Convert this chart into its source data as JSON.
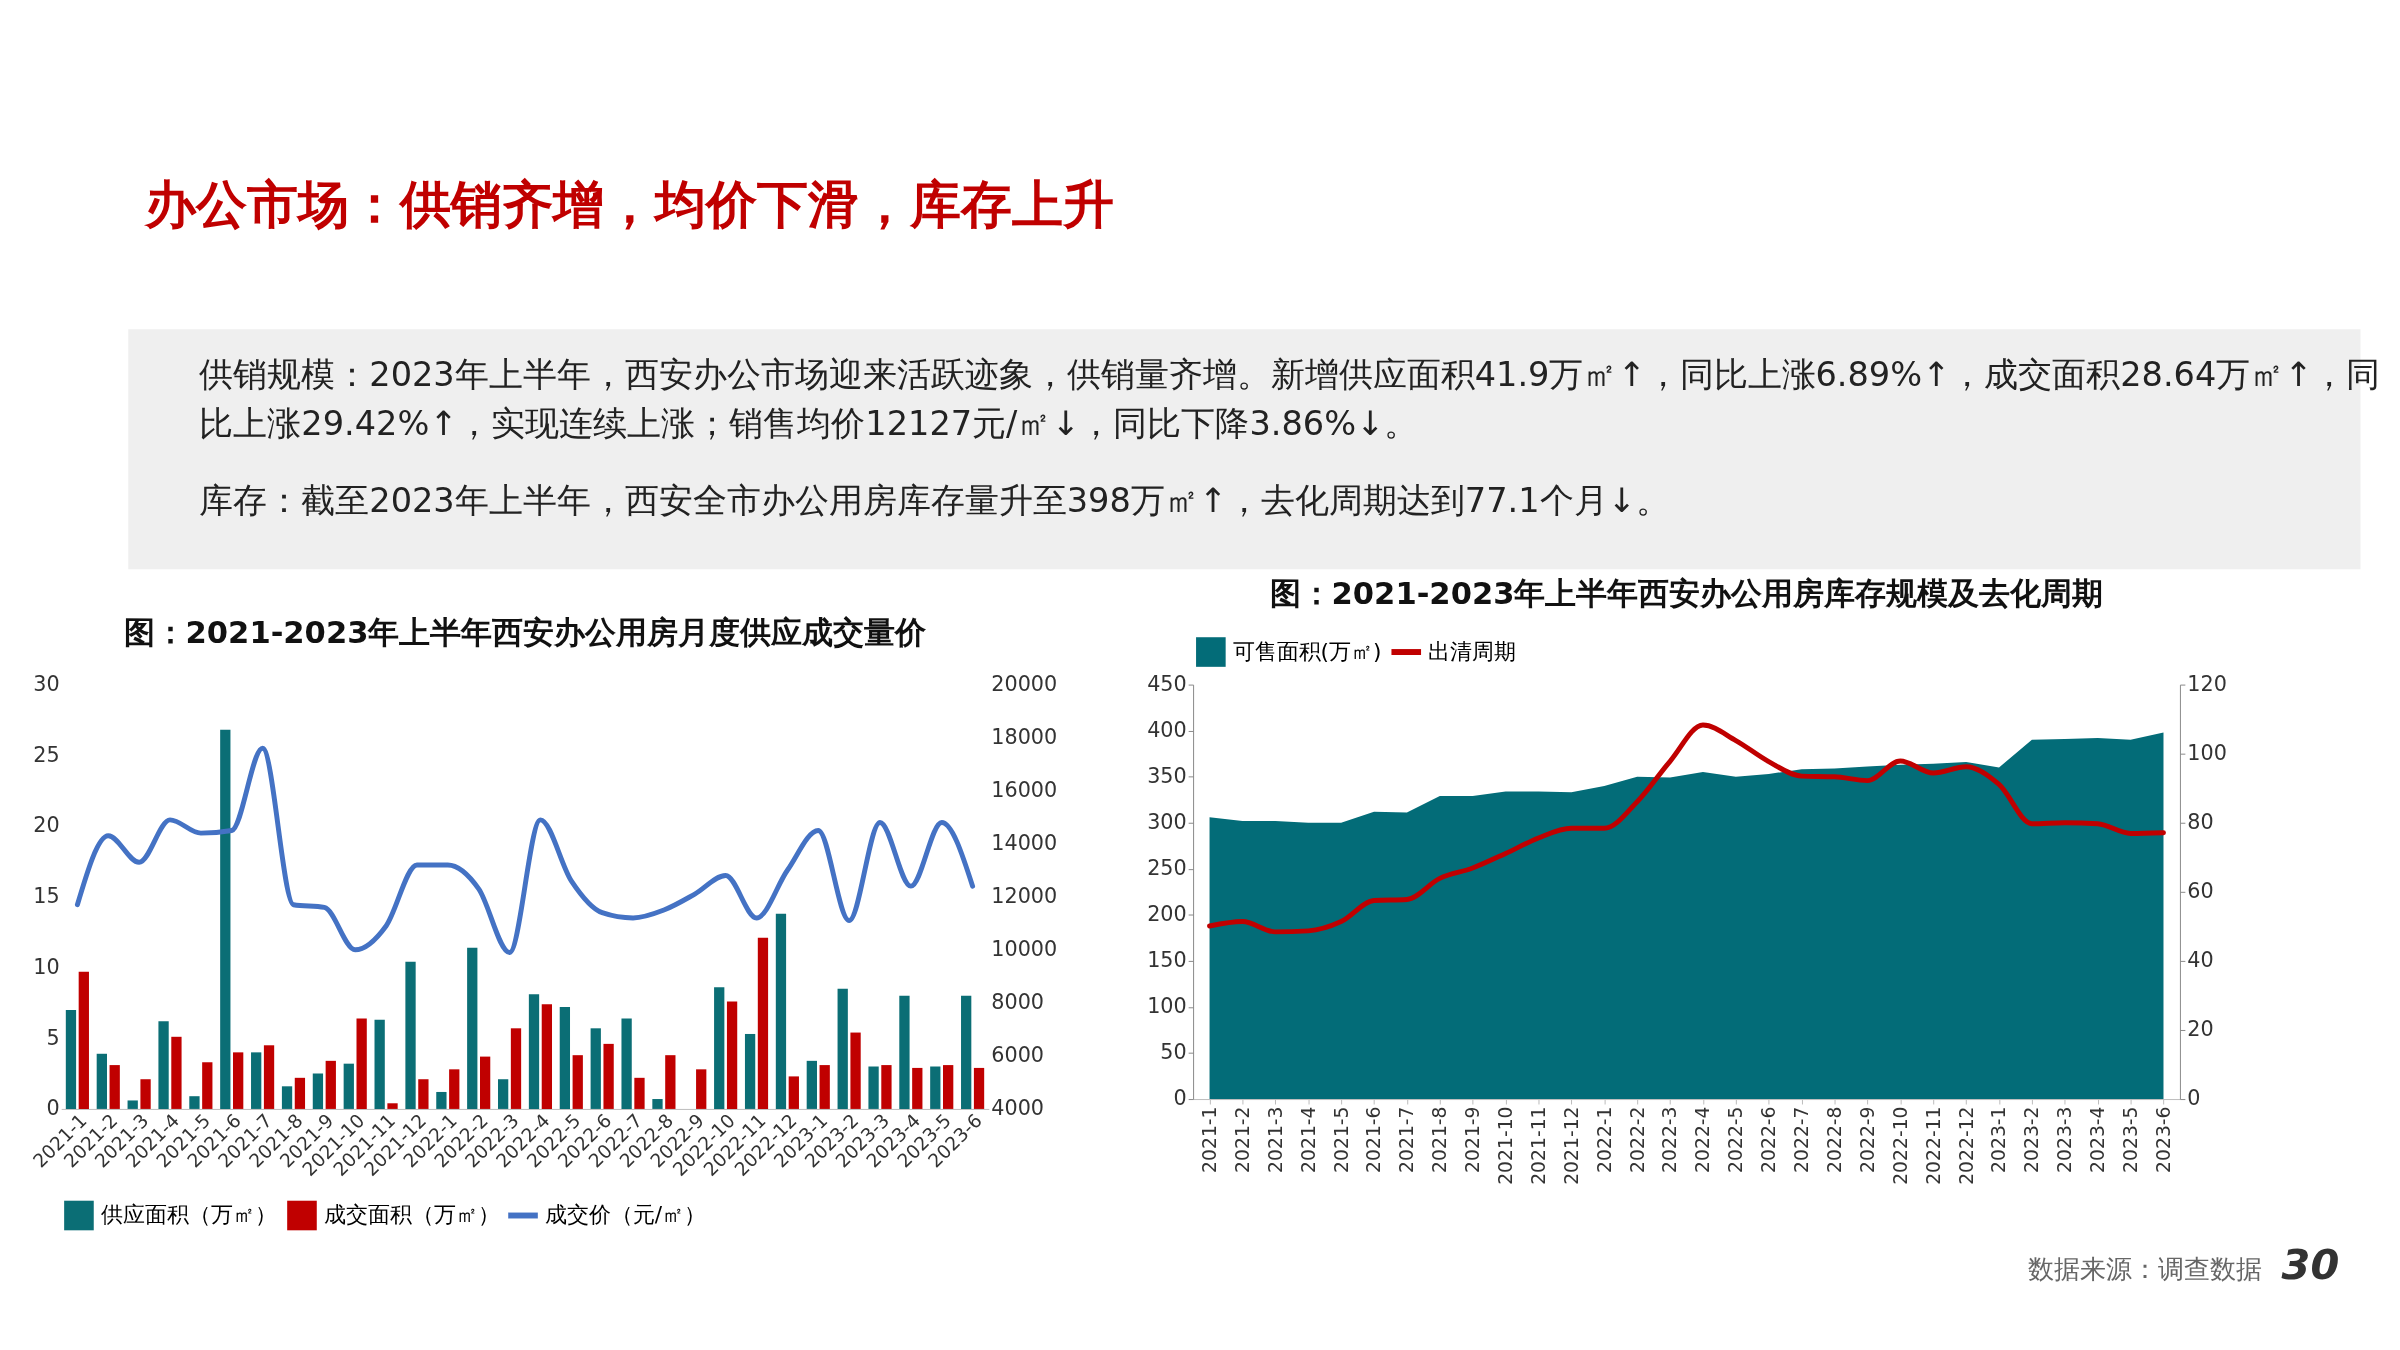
{
  "chart_data": [
    {
      "type": "other",
      "title": "办公市场：供销齐增，均价下滑，库存上升",
      "annotations": [
        "供销规模：2023年上半年，西安办公市场迎来活跃迹象，供销量齐增。新增供应面积41.9万㎡↑，同比上涨6.89%↑，成交面积28.64万㎡↑，同比上涨29.42%↑，实现连续上涨；销售均价12127元/㎡↓，同比下降3.86%↓。",
        "库存：截至2023年上半年，西安全市办公用房库存量升至398万㎡↑，去化周期达到77.1个月↓。",
        "数据来源：调查数据",
        "30"
      ]
    },
    {
      "type": "bar",
      "title": "图：2021-2023年上半年西安办公用房月度供应成交量价",
      "categories": [
        "2021-1",
        "2021-2",
        "2021-3",
        "2021-4",
        "2021-5",
        "2021-6",
        "2021-7",
        "2021-8",
        "2021-9",
        "2021-10",
        "2021-11",
        "2021-12",
        "2022-1",
        "2022-2",
        "2022-3",
        "2022-4",
        "2022-5",
        "2022-6",
        "2022-7",
        "2022-8",
        "2022-9",
        "2022-10",
        "2022-11",
        "2022-12",
        "2023-1",
        "2023-2",
        "2023-3",
        "2023-4",
        "2023-5",
        "2023-6"
      ],
      "series": [
        {
          "name": "供应面积（万㎡）",
          "type": "bar",
          "color": "#0b6e75",
          "values": [
            7.0,
            3.9,
            0.6,
            6.2,
            0.9,
            26.8,
            4.0,
            1.6,
            2.5,
            3.2,
            6.3,
            10.4,
            1.2,
            11.4,
            2.1,
            8.1,
            7.2,
            5.7,
            6.4,
            0.7,
            0,
            8.6,
            5.3,
            13.8,
            3.4,
            8.5,
            3.0,
            8.0,
            3.0,
            8.0
          ]
        },
        {
          "name": "成交面积（万㎡）",
          "type": "bar",
          "color": "#c00000",
          "values": [
            9.7,
            3.1,
            2.1,
            5.1,
            3.3,
            4.0,
            4.5,
            2.2,
            3.4,
            6.4,
            0.4,
            2.1,
            2.8,
            3.7,
            5.7,
            7.4,
            3.8,
            4.6,
            2.2,
            3.8,
            2.8,
            7.6,
            12.1,
            2.3,
            3.1,
            5.4,
            3.1,
            2.9,
            3.1,
            2.9
          ]
        },
        {
          "name": "成交价（元/㎡）",
          "type": "line",
          "axis": "y2",
          "color": "#4472c4",
          "values": [
            11700,
            14300,
            13300,
            14900,
            14400,
            14500,
            17600,
            11700,
            11600,
            10000,
            10900,
            13200,
            13200,
            12300,
            9900,
            14900,
            12600,
            11400,
            11200,
            11500,
            12100,
            12800,
            11200,
            13000,
            14500,
            11100,
            14800,
            12400,
            14800,
            12400
          ]
        }
      ],
      "ylim": [
        0,
        30
      ],
      "yticks": [
        0,
        5,
        10,
        15,
        20,
        25,
        30
      ],
      "y2lim": [
        4000,
        20000
      ],
      "y2ticks": [
        4000,
        6000,
        8000,
        10000,
        12000,
        14000,
        16000,
        18000,
        20000
      ],
      "grid": false,
      "legend": "bottom"
    },
    {
      "type": "area",
      "title": "图：2021-2023年上半年西安办公用房库存规模及去化周期",
      "categories": [
        "2021-1",
        "2021-2",
        "2021-3",
        "2021-4",
        "2021-5",
        "2021-6",
        "2021-7",
        "2021-8",
        "2021-9",
        "2021-10",
        "2021-11",
        "2021-12",
        "2022-1",
        "2022-2",
        "2022-3",
        "2022-4",
        "2022-5",
        "2022-6",
        "2022-7",
        "2022-8",
        "2022-9",
        "2022-10",
        "2022-11",
        "2022-12",
        "2023-1",
        "2023-2",
        "2023-3",
        "2023-4",
        "2023-5",
        "2023-6"
      ],
      "series": [
        {
          "name": "可售面积(万㎡)",
          "type": "area",
          "color": "#036c78",
          "values": [
            306,
            302,
            302,
            300,
            300,
            312,
            311,
            329,
            329,
            334,
            334,
            333,
            340,
            350,
            349,
            355,
            350,
            353,
            358,
            359,
            361,
            363,
            364,
            366,
            360,
            390,
            391,
            392,
            390,
            398
          ]
        },
        {
          "name": "出清周期",
          "type": "line",
          "axis": "y2",
          "color": "#c00000",
          "values": [
            50.1,
            51.4,
            48.4,
            48.7,
            51.4,
            57.5,
            57.8,
            63.9,
            66.9,
            71.1,
            75.6,
            78.4,
            78.4,
            86.1,
            97.8,
            108.3,
            103.8,
            97.7,
            93.5,
            93.3,
            92.2,
            97.9,
            94.4,
            96.2,
            91.1,
            79.7,
            80.0,
            79.7,
            76.9,
            77.1
          ]
        }
      ],
      "ylim": [
        0,
        450
      ],
      "yticks": [
        0,
        50,
        100,
        150,
        200,
        250,
        300,
        350,
        400,
        450
      ],
      "y2lim": [
        0,
        120
      ],
      "y2ticks": [
        0,
        20,
        40,
        60,
        80,
        100,
        120
      ],
      "grid": false,
      "legend": "top"
    }
  ]
}
